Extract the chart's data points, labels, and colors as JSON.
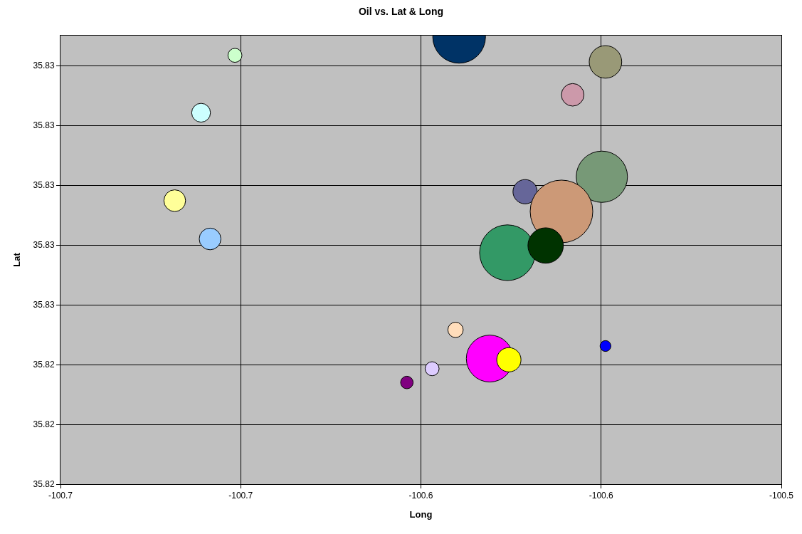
{
  "chart_data": {
    "type": "bubble",
    "title": "Oil vs. Lat & Long",
    "xlabel": "Long",
    "ylabel": "Lat",
    "x": [
      -100.6716,
      -100.5688,
      -100.5779,
      -100.681,
      -100.5698,
      -100.5911,
      -100.6883,
      -100.581,
      -100.6785,
      -100.596,
      -100.5854,
      -100.6104,
      -100.5688,
      -100.6009,
      -100.5956,
      -100.6169,
      -100.6239,
      -100.6094
    ],
    "values": [
      35.82917,
      35.82906,
      35.82851,
      35.82821,
      35.82714,
      35.82689,
      35.82674,
      35.82656,
      35.8261,
      35.82587,
      35.82599,
      35.82458,
      35.82431,
      35.8241,
      35.82408,
      35.82393,
      35.8237,
      35.82948
    ],
    "sizes": [
      0.05,
      0.27,
      0.13,
      0.09,
      0.67,
      0.15,
      0.12,
      1,
      0.12,
      0.79,
      0.32,
      0.06,
      0.03,
      0.56,
      0.15,
      0.05,
      0.04,
      0.71
    ],
    "colors": [
      "#ccffcc",
      "#999977",
      "#cc99aa",
      "#ccffff",
      "#779977",
      "#666699",
      "#ffff99",
      "#cc9977",
      "#99ccff",
      "#339966",
      "#003300",
      "#ffddbb",
      "#0000ff",
      "#ff00ff",
      "#ffff00",
      "#ddccff",
      "#800080",
      "#003366"
    ],
    "xlim": [
      -100.72,
      -100.52
    ],
    "xticks": [
      {
        "value": -100.72,
        "label": "-100.7"
      },
      {
        "value": -100.67,
        "label": "-100.7"
      },
      {
        "value": -100.62,
        "label": "-100.6"
      },
      {
        "value": -100.57,
        "label": "-100.6"
      },
      {
        "value": -100.52,
        "label": "-100.5"
      }
    ],
    "ylim": [
      35.822,
      35.8295
    ],
    "yticks": [
      {
        "value": 35.822,
        "label": "35.82"
      },
      {
        "value": 35.823,
        "label": "35.82"
      },
      {
        "value": 35.824,
        "label": "35.82"
      },
      {
        "value": 35.825,
        "label": "35.83"
      },
      {
        "value": 35.826,
        "label": "35.83"
      },
      {
        "value": 35.827,
        "label": "35.83"
      },
      {
        "value": 35.828,
        "label": "35.83"
      },
      {
        "value": 35.829,
        "label": "35.83"
      }
    ],
    "grid": true,
    "legend": false
  }
}
